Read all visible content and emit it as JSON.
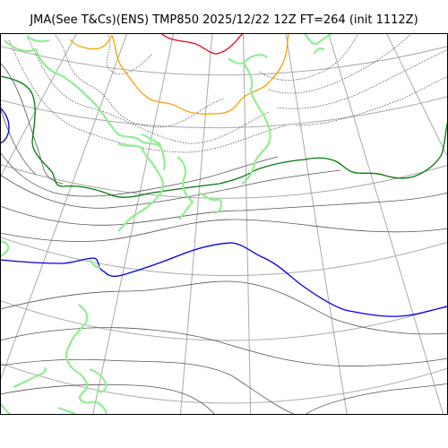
{
  "title": "JMA(See T&Cs)(ENS) TMP850 2025/12/22 12Z FT=264 (init 1112Z)",
  "map": {
    "projection": "polar-stereographic",
    "variable": "TMP850",
    "isotherm_colors": {
      "red": "#e8001a",
      "orange": "#f5a300",
      "green": "#007a0a",
      "blue": "#0000e6",
      "thin": "#555555"
    },
    "coastline_color": "#90ee90",
    "graticule_color": "#a9a9a9"
  }
}
